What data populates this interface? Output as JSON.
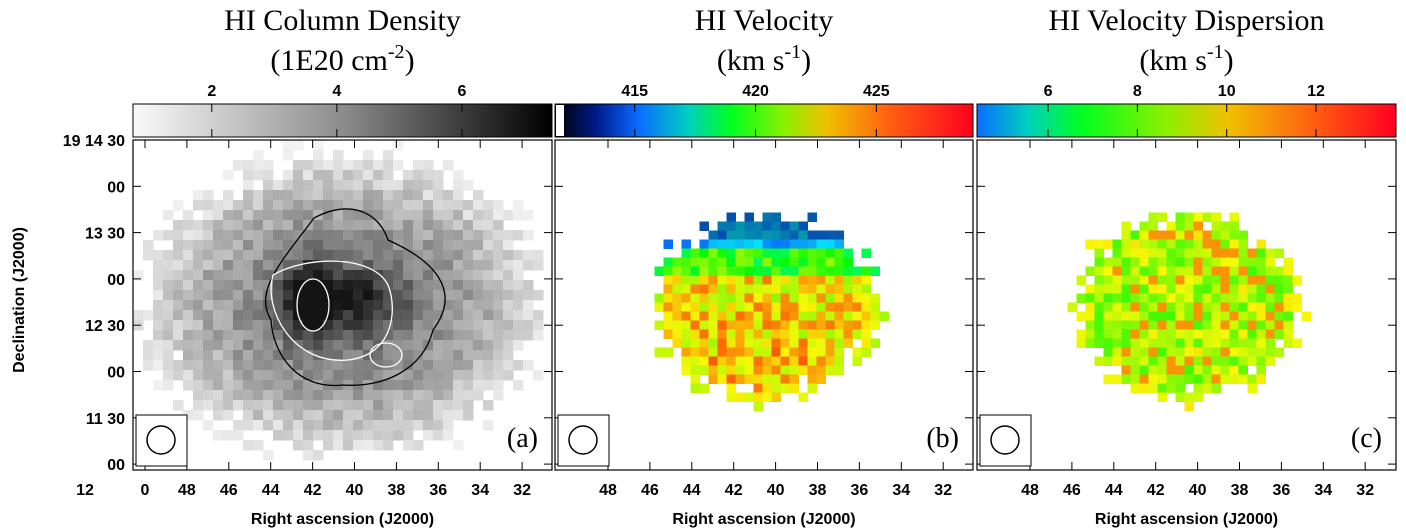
{
  "panels": [
    {
      "title": "HI Column Density",
      "unit": {
        "main": "(1E20 cm",
        "sup": "-2",
        "end": ")"
      },
      "colorbar": {
        "lim": [
          0.74,
          7.44
        ],
        "ticks": [
          2,
          4,
          6
        ]
      },
      "label": "(a)",
      "xticks": [
        "12",
        "0",
        "48",
        "46",
        "44",
        "42",
        "40",
        "38",
        "36",
        "34",
        "32"
      ],
      "xlabel": "Right ascension (J2000)"
    },
    {
      "title": "HI Velocity",
      "unit": {
        "main": "(km s",
        "sup": "-1",
        "end": ")"
      },
      "colorbar": {
        "lim": [
          411.7,
          429.0
        ],
        "ticks": [
          415,
          420,
          425
        ]
      },
      "label": "(b)",
      "xticks": [
        "48",
        "46",
        "44",
        "42",
        "40",
        "38",
        "36",
        "34",
        "32"
      ],
      "xlabel": "Right ascension (J2000)"
    },
    {
      "title": "HI Velocity Dispersion",
      "unit": {
        "main": "(km s",
        "sup": "-1",
        "end": ")"
      },
      "colorbar": {
        "lim": [
          4.41,
          13.79
        ],
        "ticks": [
          6,
          8,
          10,
          12
        ]
      },
      "label": "(c)",
      "xticks": [
        "48",
        "46",
        "44",
        "42",
        "40",
        "38",
        "36",
        "34",
        "32"
      ],
      "xlabel": "Right ascension (J2000)"
    }
  ],
  "ylabel": "Declination (J2000)",
  "yticks": [
    "19 14 30",
    "00",
    "13 30",
    "00",
    "12 30",
    "00",
    "11 30",
    "00"
  ]
}
